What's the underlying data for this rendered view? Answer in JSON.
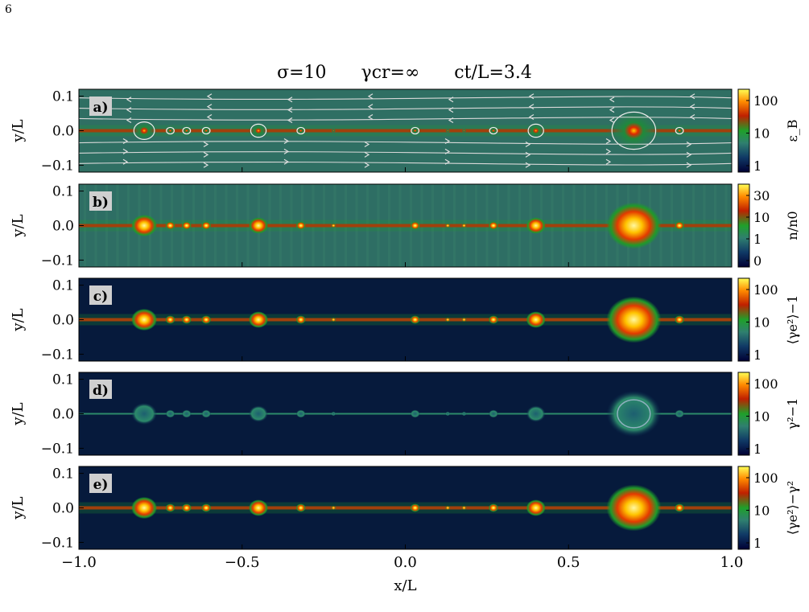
{
  "page_number": "6",
  "figure": {
    "title_parts": [
      "σ=10",
      "γ_cr=∞",
      "ct/L=3.4"
    ],
    "title_sigma": "σ=10",
    "title_gamma": "γcr=∞",
    "title_time": "ct/L=3.4",
    "x_label": "x/L",
    "x_ticks": [
      "−1.0",
      "−0.5",
      "0.0",
      "0.5",
      "1.0"
    ],
    "y_label": "y/L",
    "y_ticks": [
      "0.1",
      "0.0",
      "−0.1"
    ]
  },
  "chart_data": [
    {
      "type": "heatmap",
      "panel_label": "a)",
      "colorbar_label": "ε_B",
      "colorbar_ticks": [
        "100",
        "10",
        "1"
      ],
      "xlim": [
        -1.0,
        1.0
      ],
      "ylim": [
        -0.12,
        0.12
      ],
      "overlay": "magnetic field lines with arrows",
      "colormap": [
        "#000033",
        "#1b4b6b",
        "#2f7f6f",
        "#2ca12c",
        "#cc2b00",
        "#ff9a00",
        "#ffff44"
      ]
    },
    {
      "type": "heatmap",
      "panel_label": "b)",
      "colorbar_label": "n/n0",
      "colorbar_ticks": [
        "30",
        "10",
        "1",
        "0"
      ],
      "xlim": [
        -1.0,
        1.0
      ],
      "ylim": [
        -0.12,
        0.12
      ]
    },
    {
      "type": "heatmap",
      "panel_label": "c)",
      "colorbar_label": "⟨γe²⟩−1",
      "colorbar_ticks": [
        "100",
        "10",
        "1"
      ],
      "xlim": [
        -1.0,
        1.0
      ],
      "ylim": [
        -0.12,
        0.12
      ]
    },
    {
      "type": "heatmap",
      "panel_label": "d)",
      "colorbar_label": "γ²−1",
      "colorbar_ticks": [
        "100",
        "10",
        "1"
      ],
      "xlim": [
        -1.0,
        1.0
      ],
      "ylim": [
        -0.12,
        0.12
      ]
    },
    {
      "type": "heatmap",
      "panel_label": "e)",
      "colorbar_label": "⟨γe²⟩−γ²",
      "colorbar_ticks": [
        "100",
        "10",
        "1"
      ],
      "xlim": [
        -1.0,
        1.0
      ],
      "ylim": [
        -0.12,
        0.12
      ]
    }
  ],
  "plasmoids": [
    {
      "x": -0.8,
      "size": "large"
    },
    {
      "x": -0.72,
      "size": "small"
    },
    {
      "x": -0.67,
      "size": "small"
    },
    {
      "x": -0.61,
      "size": "small"
    },
    {
      "x": -0.45,
      "size": "medium"
    },
    {
      "x": -0.32,
      "size": "small"
    },
    {
      "x": -0.22,
      "size": "tiny"
    },
    {
      "x": 0.03,
      "size": "small"
    },
    {
      "x": 0.13,
      "size": "tiny"
    },
    {
      "x": 0.18,
      "size": "tiny"
    },
    {
      "x": 0.27,
      "size": "small"
    },
    {
      "x": 0.4,
      "size": "medium"
    },
    {
      "x": 0.7,
      "size": "huge"
    },
    {
      "x": 0.84,
      "size": "small"
    }
  ],
  "colors": {
    "panel_a_bg": "#2f6f63",
    "panel_b_bg": "#2e6e64",
    "panel_dark_bg": "#061a3c",
    "current_sheet": "#cc2200",
    "core": "#ffee44",
    "label_box": "#cfcfcf"
  }
}
